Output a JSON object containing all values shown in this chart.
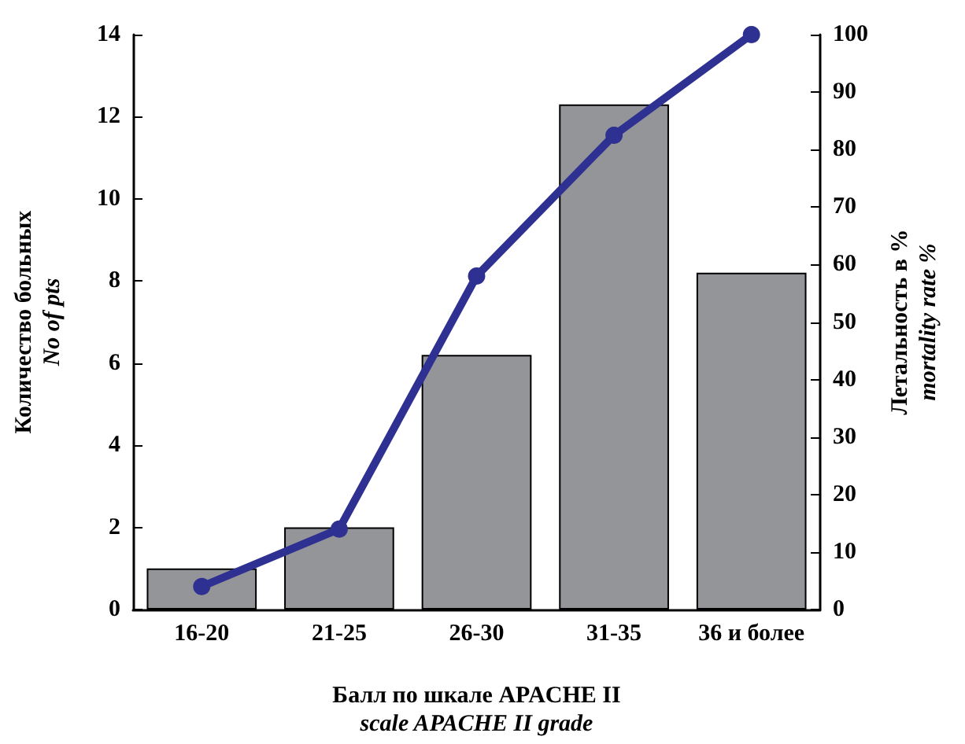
{
  "chart_data": {
    "type": "bar",
    "xlabel": "Балл по шкале APACHE II\nscale APACHE II grade",
    "ylabel": "Количество больных\nNo of pts",
    "y2label": "Летальность в %\nmortality rate %",
    "categories": [
      "16-20",
      "21-25",
      "26-30",
      "31-35",
      "36 и более"
    ],
    "series": [
      {
        "color": "#939598",
        "values": [
          1,
          2,
          6.2,
          12.3,
          8.2
        ]
      },
      {
        "type": "line",
        "axis": "y2",
        "color": "#2e3192",
        "marker": "circle",
        "line_style": "solid",
        "values": [
          4,
          14,
          58,
          82.5,
          100
        ]
      }
    ],
    "ylim": [
      0,
      14
    ],
    "yticks": [
      0,
      2,
      4,
      6,
      8,
      10,
      12,
      14
    ],
    "y2lim": [
      0,
      100
    ],
    "y2ticks": [
      0,
      10,
      20,
      30,
      40,
      50,
      60,
      70,
      80,
      90,
      100
    ],
    "grid": false
  }
}
